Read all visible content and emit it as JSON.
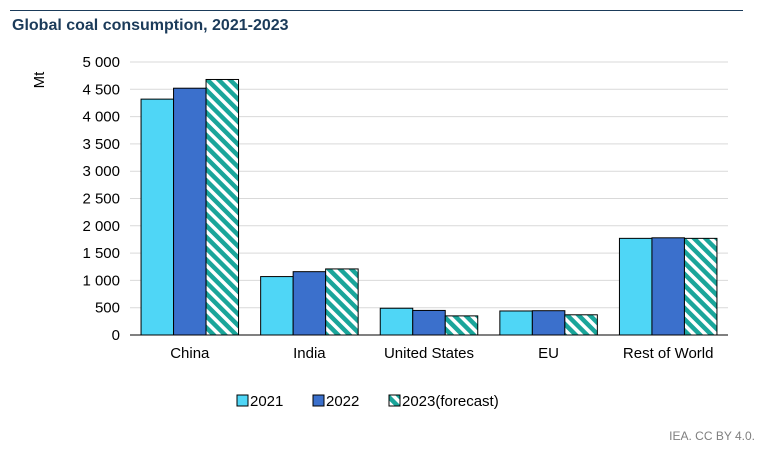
{
  "chart_data": {
    "type": "bar",
    "title": "Global coal consumption, 2021-2023",
    "ylabel": "Mt",
    "xlabel": "",
    "ylim": [
      0,
      5000
    ],
    "yticks": [
      0,
      500,
      1000,
      1500,
      2000,
      2500,
      3000,
      3500,
      4000,
      4500,
      5000
    ],
    "ytick_labels": [
      "0",
      "500",
      "1 000",
      "1 500",
      "2 000",
      "2 500",
      "3 000",
      "3 500",
      "4 000",
      "4 500",
      "5 000"
    ],
    "categories": [
      "China",
      "India",
      "United States",
      "EU",
      "Rest of World"
    ],
    "series": [
      {
        "name": "2021",
        "color": "#4fd6f6",
        "pattern": "solid",
        "values": [
          4320,
          1070,
          490,
          440,
          1770
        ]
      },
      {
        "name": "2022",
        "color": "#3b70cc",
        "pattern": "solid",
        "values": [
          4520,
          1160,
          450,
          445,
          1780
        ]
      },
      {
        "name": "2023(forecast)",
        "color": "#1aa59a",
        "pattern": "hatch",
        "values": [
          4680,
          1210,
          350,
          370,
          1770
        ]
      }
    ],
    "grid": true,
    "legend_position": "bottom"
  },
  "source": "IEA. CC BY 4.0."
}
